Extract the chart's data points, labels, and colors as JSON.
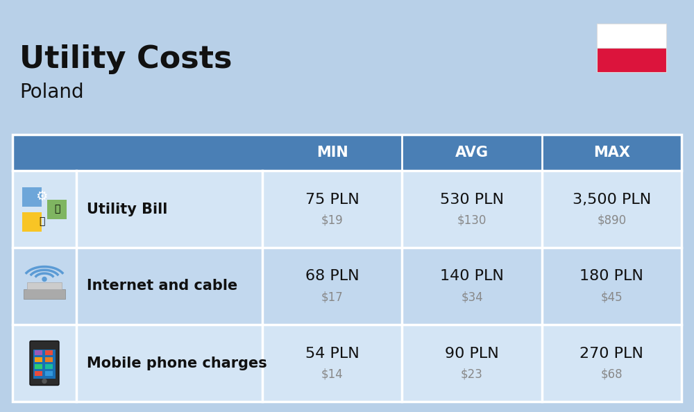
{
  "title": "Utility Costs",
  "subtitle": "Poland",
  "background_color": "#b8d0e8",
  "header_bg_color": "#4a7fb5",
  "header_text_color": "#ffffff",
  "row_bg_color_1": "#d4e5f5",
  "row_bg_color_2": "#c2d8ee",
  "divider_color": "#ffffff",
  "headers": [
    "MIN",
    "AVG",
    "MAX"
  ],
  "rows": [
    {
      "label": "Utility Bill",
      "min_pln": "75 PLN",
      "min_usd": "$19",
      "avg_pln": "530 PLN",
      "avg_usd": "$130",
      "max_pln": "3,500 PLN",
      "max_usd": "$890"
    },
    {
      "label": "Internet and cable",
      "min_pln": "68 PLN",
      "min_usd": "$17",
      "avg_pln": "140 PLN",
      "avg_usd": "$34",
      "max_pln": "180 PLN",
      "max_usd": "$45"
    },
    {
      "label": "Mobile phone charges",
      "min_pln": "54 PLN",
      "min_usd": "$14",
      "avg_pln": "90 PLN",
      "avg_usd": "$23",
      "max_pln": "270 PLN",
      "max_usd": "$68"
    }
  ],
  "pln_fontsize": 16,
  "usd_fontsize": 12,
  "label_fontsize": 15,
  "header_fontsize": 15,
  "title_fontsize": 32,
  "subtitle_fontsize": 20,
  "poland_flag_white": "#ffffff",
  "poland_flag_red": "#dc143c",
  "title_color": "#111111",
  "label_color": "#111111",
  "pln_color": "#111111",
  "usd_color": "#888888"
}
